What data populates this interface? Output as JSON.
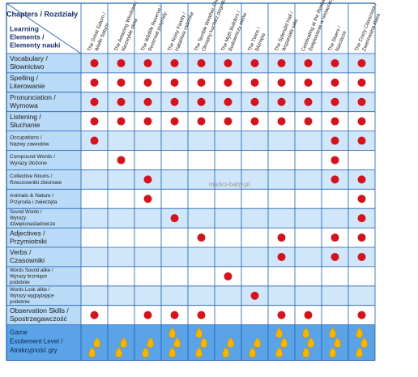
{
  "header": {
    "chapters_label": "Chapters / Rozdziały",
    "elements_label": [
      "Learning",
      "Elements /",
      "Elementy nauki"
    ]
  },
  "chapters": [
    [
      "The Great Saturn /",
      "Wielki Saturn"
    ],
    [
      "The Amazing Windows /",
      "Niezwykłe okna"
    ],
    [
      "The Wildlife Reserve /",
      "Rezerwat przyrody"
    ],
    [
      "The Noisy Family /",
      "Hałaśliwa rodzinka"
    ],
    [
      "The Terrible Weather Chef /",
      "Okropny kucharz pogodowy"
    ],
    [
      "The Myth Builders /",
      "Budowniczy mitów"
    ],
    [
      "The Twins /",
      "Bliźnięta"
    ],
    [
      "The Splendid Hall /",
      "Wspaniała sala"
    ],
    [
      "Celebrating at the Restaurant /",
      "Świętowanie w restauracji"
    ],
    [
      "The Skiers /",
      "Narciarze"
    ],
    [
      "The Crazy Classroom /",
      "Zwariowana klasa"
    ]
  ],
  "rows": [
    {
      "label": [
        "Vocabulary /",
        "Słownictwo"
      ],
      "cells": [
        true,
        true,
        true,
        true,
        true,
        true,
        true,
        true,
        true,
        true,
        true
      ]
    },
    {
      "label": [
        "Spelling /",
        "Literowanie"
      ],
      "cells": [
        true,
        true,
        true,
        true,
        true,
        true,
        true,
        true,
        true,
        true,
        true
      ]
    },
    {
      "label": [
        "Pronunciation /",
        "Wymowa"
      ],
      "cells": [
        true,
        true,
        true,
        true,
        true,
        true,
        true,
        true,
        true,
        true,
        true
      ]
    },
    {
      "label": [
        "Listening /",
        "Słuchanie"
      ],
      "cells": [
        true,
        true,
        true,
        true,
        true,
        true,
        true,
        true,
        true,
        true,
        true
      ]
    },
    {
      "label": [
        "Occupations /",
        "Nazwy zawodów"
      ],
      "small": true,
      "cells": [
        true,
        false,
        false,
        false,
        false,
        false,
        false,
        false,
        false,
        true,
        true
      ]
    },
    {
      "label": [
        "Compound Words /",
        "Wyrazy złożone"
      ],
      "small": true,
      "cells": [
        false,
        true,
        false,
        false,
        false,
        false,
        false,
        false,
        false,
        true,
        false
      ]
    },
    {
      "label": [
        "Collective Nouns /",
        "Rzeczowniki zbiorowe"
      ],
      "small": true,
      "cells": [
        false,
        false,
        true,
        false,
        false,
        false,
        false,
        false,
        false,
        true,
        true
      ]
    },
    {
      "label": [
        "Animals & Nature /",
        "Przyroda i zwierzęta"
      ],
      "small": true,
      "cells": [
        false,
        false,
        true,
        false,
        false,
        false,
        false,
        false,
        false,
        false,
        true
      ]
    },
    {
      "label": [
        "Sound Words /",
        "Wyrazy",
        "dźwiękonaśladowcze"
      ],
      "small": true,
      "cells": [
        false,
        false,
        false,
        true,
        false,
        false,
        false,
        false,
        false,
        false,
        true
      ]
    },
    {
      "label": [
        "Adjectives /",
        "Przymiotniki"
      ],
      "cells": [
        false,
        false,
        false,
        false,
        true,
        false,
        false,
        true,
        false,
        true,
        true
      ]
    },
    {
      "label": [
        "Verbs /",
        "Czasowniki"
      ],
      "cells": [
        false,
        false,
        false,
        false,
        false,
        false,
        false,
        true,
        false,
        true,
        true
      ]
    },
    {
      "label": [
        "Words Sound alike /",
        "Wyrazy brzmiące",
        "podobnie"
      ],
      "small": true,
      "cells": [
        false,
        false,
        false,
        false,
        false,
        true,
        false,
        false,
        false,
        false,
        false
      ]
    },
    {
      "label": [
        "Words Look alike /",
        "Wyrazy wyglądające",
        "podobnie"
      ],
      "small": true,
      "cells": [
        false,
        false,
        false,
        false,
        false,
        false,
        true,
        false,
        false,
        false,
        false
      ]
    },
    {
      "label": [
        "Observation Skills /",
        "Spostrzegawczość"
      ],
      "cells": [
        true,
        false,
        true,
        true,
        true,
        false,
        false,
        true,
        true,
        false,
        true
      ]
    }
  ],
  "game": {
    "label": [
      "Game",
      "Excitement Level /",
      "Atrakcyjność gry"
    ],
    "levels": [
      2,
      2,
      2,
      3,
      3,
      2,
      2,
      3,
      3,
      3,
      3
    ]
  },
  "watermark": "marko-baby.pl"
}
